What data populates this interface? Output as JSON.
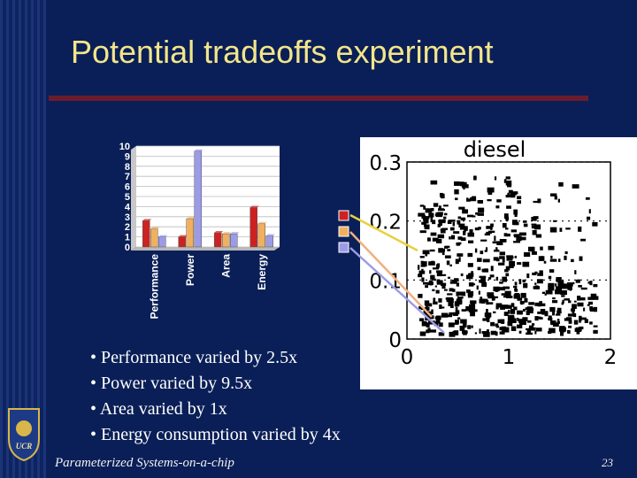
{
  "slide": {
    "title": "Potential tradeoffs experiment",
    "footer": "Parameterized Systems-on-a-chip",
    "page_number": "23",
    "logo_text": "UCR",
    "bullets": [
      "Performance varied by 2.5x",
      "Power varied by 9.5x",
      "Area varied by 1x",
      "Energy consumption varied by 4x"
    ]
  },
  "colors": {
    "background": "#0a1f57",
    "title": "#f3e58a",
    "rule": "#6b1c2c",
    "series": [
      "#cc2222",
      "#f0b060",
      "#9b9be6"
    ]
  },
  "chart_data": [
    {
      "type": "bar",
      "categories": [
        "Performance",
        "Power",
        "Area",
        "Energy"
      ],
      "series": [
        {
          "values": [
            2.6,
            1.0,
            1.4,
            3.9
          ]
        },
        {
          "values": [
            1.8,
            2.8,
            1.3,
            2.3
          ]
        },
        {
          "values": [
            1.0,
            9.5,
            1.3,
            1.1
          ]
        }
      ],
      "ylim": [
        0,
        10
      ],
      "yticks": [
        "0",
        "1",
        "2",
        "3",
        "4",
        "5",
        "6",
        "7",
        "8",
        "9",
        "10"
      ],
      "grid": true
    },
    {
      "type": "scatter",
      "title": "diesel",
      "xticks": [
        "0",
        "1",
        "2"
      ],
      "yticks": [
        "0",
        "0.1",
        "0.2",
        "0.3"
      ],
      "xlim": [
        0,
        2
      ],
      "ylim": [
        0,
        0.3
      ]
    }
  ]
}
